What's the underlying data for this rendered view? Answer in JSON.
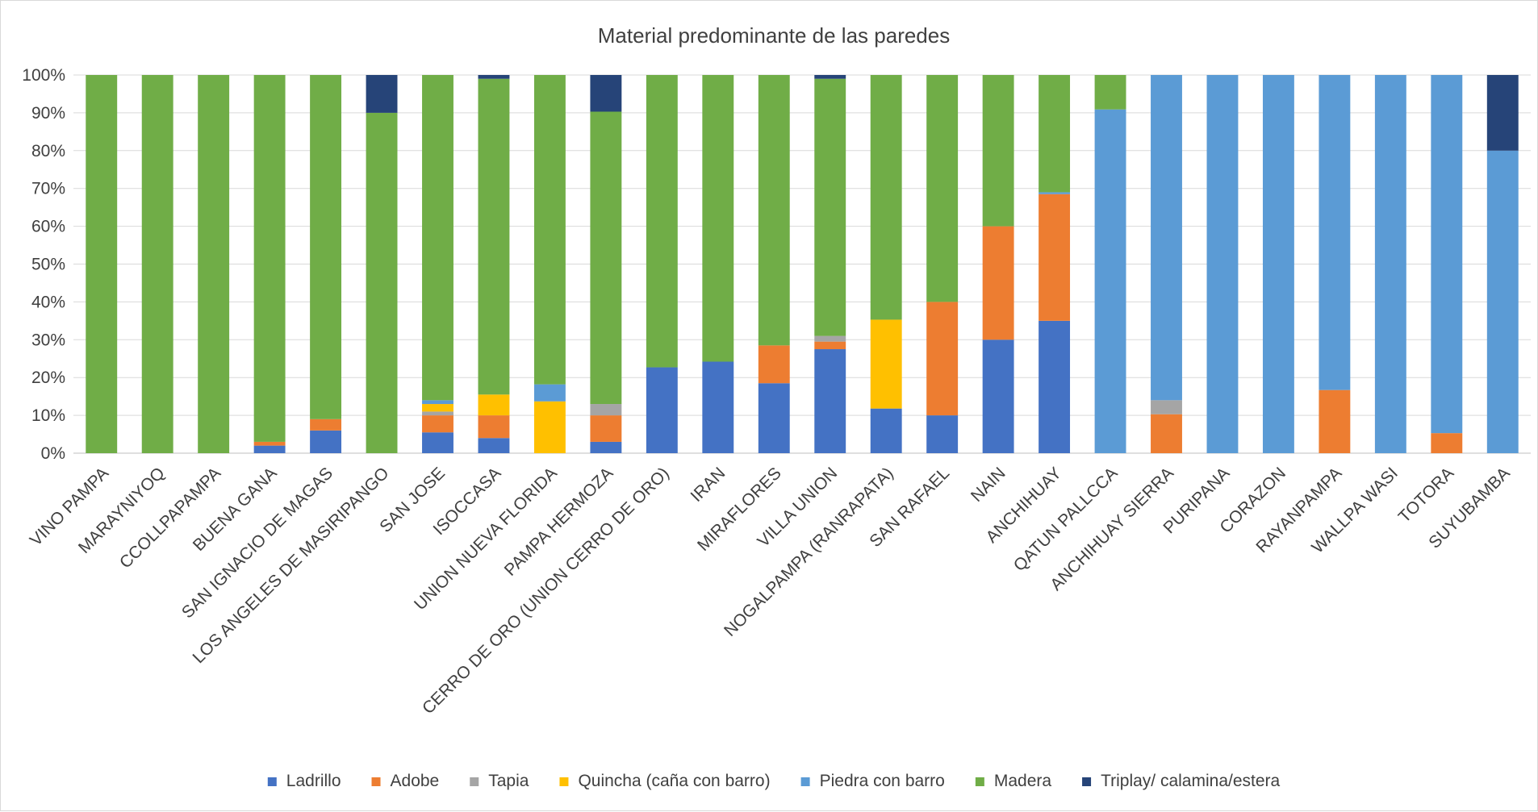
{
  "chart_data": {
    "type": "bar",
    "stacked": true,
    "title": "Material predominante de las paredes",
    "xlabel": "",
    "ylabel": "",
    "ylim": [
      0,
      100
    ],
    "y_ticks": [
      "0%",
      "10%",
      "20%",
      "30%",
      "40%",
      "50%",
      "60%",
      "70%",
      "80%",
      "90%",
      "100%"
    ],
    "grid": true,
    "legend_position": "bottom",
    "categories": [
      "VINO PAMPA",
      "MARAYNIYOQ",
      "CCOLLPAPAMPA",
      "BUENA GANA",
      "SAN IGNACIO DE MAGAS",
      "LOS ANGELES DE MASIRIPANGO",
      "SAN JOSE",
      "ISOCCASA",
      "UNION NUEVA FLORIDA",
      "PAMPA HERMOZA",
      "CERRO DE ORO (UNION CERRO DE ORO)",
      "IRAN",
      "MIRAFLORES",
      "VILLA UNION",
      "NOGALPAMPA (RANRAPATA)",
      "SAN RAFAEL",
      "NAIN",
      "ANCHIHUAY",
      "QATUN PALLCCA",
      "ANCHIHUAY SIERRA",
      "PURIPANA",
      "CORAZON",
      "RAYANPAMPA",
      "WALLPA WASI",
      "TOTORA",
      "SUYUBAMBA"
    ],
    "series": [
      {
        "name": "Ladrillo",
        "color": "#4472c4",
        "values": [
          0,
          0,
          0,
          2,
          6,
          0,
          5.5,
          4,
          0,
          3,
          22.7,
          24.2,
          18.5,
          27.5,
          11.8,
          10,
          30,
          35,
          0,
          0,
          0,
          0,
          0,
          0,
          0,
          0
        ]
      },
      {
        "name": "Adobe",
        "color": "#ed7d31",
        "values": [
          0,
          0,
          0,
          1,
          3,
          0,
          4.5,
          6,
          0,
          7,
          0,
          0,
          10,
          2,
          0,
          30,
          30,
          33.5,
          0,
          10.3,
          0,
          0,
          16.7,
          0,
          5.3,
          0
        ]
      },
      {
        "name": "Tapia",
        "color": "#a5a5a5",
        "values": [
          0,
          0,
          0,
          0,
          0,
          0,
          1,
          0,
          0,
          3,
          0,
          0,
          0,
          1.5,
          0,
          0,
          0,
          0,
          0,
          3.7,
          0,
          0,
          0,
          0,
          0,
          0
        ]
      },
      {
        "name": "Quincha (caña con barro)",
        "color": "#ffc000",
        "values": [
          0,
          0,
          0,
          0,
          0,
          0,
          2,
          5.5,
          13.7,
          0,
          0,
          0,
          0,
          0,
          23.5,
          0,
          0,
          0,
          0,
          0,
          0,
          0,
          0,
          0,
          0,
          0
        ]
      },
      {
        "name": "Piedra con barro",
        "color": "#5b9bd5",
        "values": [
          0,
          0,
          0,
          0,
          0,
          0,
          1,
          0,
          4.5,
          0,
          0,
          0,
          0,
          0,
          0,
          0,
          0,
          0.5,
          90.9,
          86,
          100,
          100,
          83.3,
          100,
          94.7,
          80
        ]
      },
      {
        "name": "Madera",
        "color": "#70ad47",
        "values": [
          100,
          100,
          100,
          97,
          91,
          90,
          86,
          83.5,
          81.8,
          77.3,
          77.3,
          75.8,
          71.5,
          68,
          64.7,
          60,
          40,
          31,
          9.1,
          0,
          0,
          0,
          0,
          0,
          0,
          0
        ]
      },
      {
        "name": "Triplay/ calamina/estera",
        "color": "#264478",
        "values": [
          0,
          0,
          0,
          0,
          0,
          10,
          0,
          1,
          0,
          9.7,
          0,
          0,
          0,
          1,
          0,
          0,
          0,
          0,
          0,
          0,
          0,
          0,
          0,
          0,
          0,
          20
        ]
      }
    ]
  }
}
